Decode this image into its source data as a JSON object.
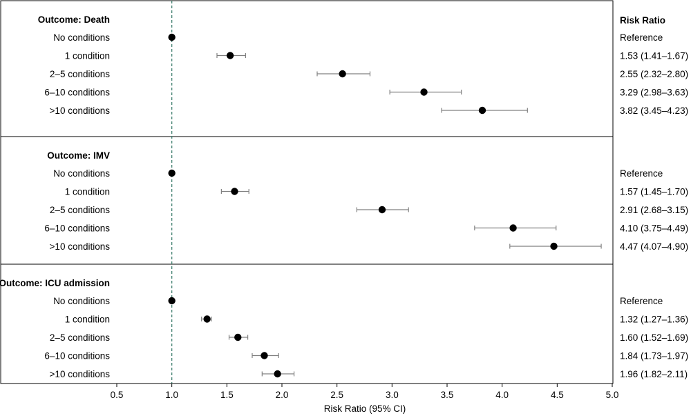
{
  "chart_data": {
    "type": "forest",
    "xlabel": "Risk Ratio (95% CI)",
    "xlim": [
      0.5,
      5.0
    ],
    "xticks": [
      "0.5",
      "1.0",
      "1.5",
      "2.0",
      "2.5",
      "3.0",
      "3.5",
      "4.0",
      "4.5",
      "5.0"
    ],
    "reference_line": 1.0,
    "right_column_header": "Risk Ratio",
    "panels": [
      {
        "title": "Outcome: Death",
        "rows": [
          {
            "label": "No conditions",
            "rr": 1.0,
            "lo": null,
            "hi": null,
            "text": "Reference"
          },
          {
            "label": "1 condition",
            "rr": 1.53,
            "lo": 1.41,
            "hi": 1.67,
            "text": "1.53 (1.41–1.67)"
          },
          {
            "label": "2–5 conditions",
            "rr": 2.55,
            "lo": 2.32,
            "hi": 2.8,
            "text": "2.55 (2.32–2.80)"
          },
          {
            "label": "6–10 conditions",
            "rr": 3.29,
            "lo": 2.98,
            "hi": 3.63,
            "text": "3.29 (2.98–3.63)"
          },
          {
            "label": ">10 conditions",
            "rr": 3.82,
            "lo": 3.45,
            "hi": 4.23,
            "text": "3.82 (3.45–4.23)"
          }
        ]
      },
      {
        "title": "Outcome: IMV",
        "rows": [
          {
            "label": "No conditions",
            "rr": 1.0,
            "lo": null,
            "hi": null,
            "text": "Reference"
          },
          {
            "label": "1 condition",
            "rr": 1.57,
            "lo": 1.45,
            "hi": 1.7,
            "text": "1.57 (1.45–1.70)"
          },
          {
            "label": "2–5 conditions",
            "rr": 2.91,
            "lo": 2.68,
            "hi": 3.15,
            "text": "2.91 (2.68–3.15)"
          },
          {
            "label": "6–10 conditions",
            "rr": 4.1,
            "lo": 3.75,
            "hi": 4.49,
            "text": "4.10 (3.75–4.49)"
          },
          {
            "label": ">10 conditions",
            "rr": 4.47,
            "lo": 4.07,
            "hi": 4.9,
            "text": "4.47 (4.07–4.90)"
          }
        ]
      },
      {
        "title": "Outcome: ICU admission",
        "rows": [
          {
            "label": "No conditions",
            "rr": 1.0,
            "lo": null,
            "hi": null,
            "text": "Reference"
          },
          {
            "label": "1 condition",
            "rr": 1.32,
            "lo": 1.27,
            "hi": 1.36,
            "text": "1.32 (1.27–1.36)"
          },
          {
            "label": "2–5 conditions",
            "rr": 1.6,
            "lo": 1.52,
            "hi": 1.69,
            "text": "1.60 (1.52–1.69)"
          },
          {
            "label": "6–10 conditions",
            "rr": 1.84,
            "lo": 1.73,
            "hi": 1.97,
            "text": "1.84 (1.73–1.97)"
          },
          {
            "label": ">10 conditions",
            "rr": 1.96,
            "lo": 1.82,
            "hi": 2.11,
            "text": "1.96 (1.82–2.11)"
          }
        ]
      }
    ],
    "colors": {
      "point": "#000000",
      "ci": "#808080",
      "reference_line": "#3f7f6f",
      "frame": "#000000"
    }
  }
}
